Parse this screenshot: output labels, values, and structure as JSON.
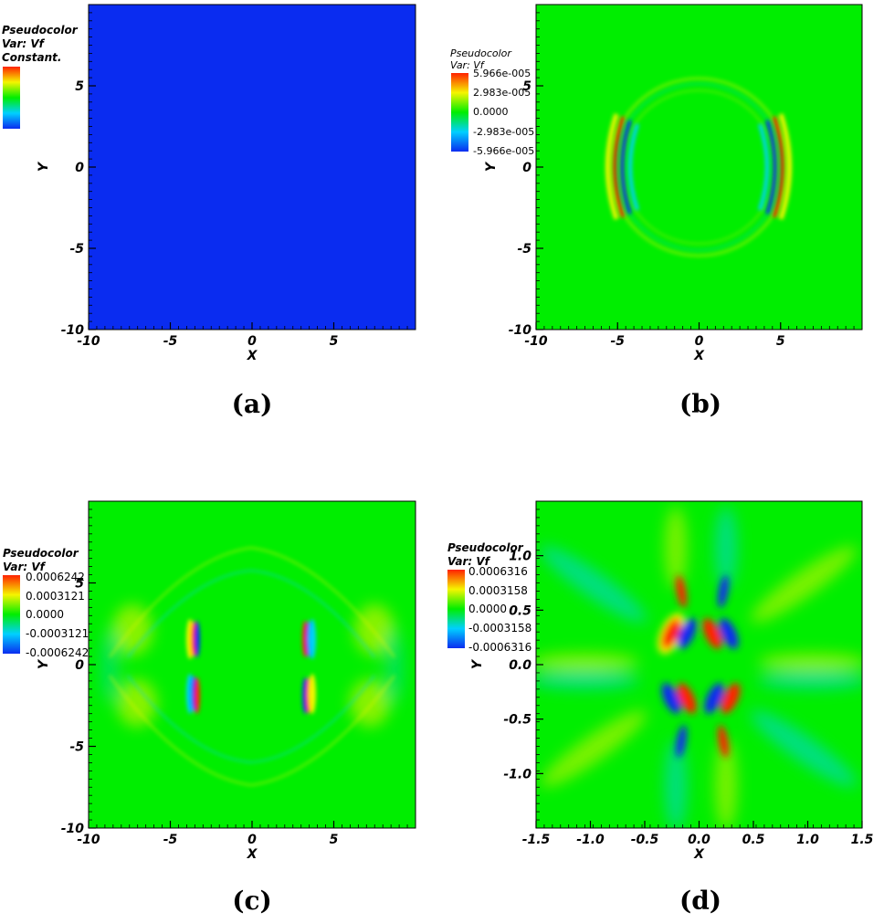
{
  "panels": [
    {
      "caption": "(a)",
      "legend": {
        "title": "Pseudocolor",
        "var": "Var: Vf",
        "labels": [
          "Constant."
        ]
      },
      "chart_data": {
        "type": "heatmap",
        "field": "constant",
        "xlabel": "X",
        "ylabel": "Y",
        "xlim": [
          -10,
          10
        ],
        "ylim": [
          -10,
          10
        ],
        "xticks": [
          {
            "v": -10,
            "label": "-10"
          },
          {
            "v": -5,
            "label": "-5"
          },
          {
            "v": 0,
            "label": "0"
          },
          {
            "v": 5,
            "label": "5"
          }
        ],
        "yticks": [
          {
            "v": -10,
            "label": "-10"
          },
          {
            "v": -5,
            "label": "-5"
          },
          {
            "v": 0,
            "label": "0"
          },
          {
            "v": 5,
            "label": "5"
          }
        ],
        "colormap": "hot-desaturated"
      }
    },
    {
      "caption": "(b)",
      "legend": {
        "title": "Pseudocolor",
        "var": "Var: Vf",
        "labels": [
          "5.966e-005",
          "2.983e-005",
          "0.0000",
          "-2.983e-005",
          "-5.966e-005"
        ]
      },
      "chart_data": {
        "type": "heatmap",
        "field": "ring",
        "xlabel": "X",
        "ylabel": "Y",
        "xlim": [
          -10,
          10
        ],
        "ylim": [
          -10,
          10
        ],
        "xticks": [
          {
            "v": -10,
            "label": "-10"
          },
          {
            "v": -5,
            "label": "-5"
          },
          {
            "v": 0,
            "label": "0"
          },
          {
            "v": 5,
            "label": "5"
          }
        ],
        "yticks": [
          {
            "v": -10,
            "label": "-10"
          },
          {
            "v": -5,
            "label": "-5"
          },
          {
            "v": 0,
            "label": "0"
          },
          {
            "v": 5,
            "label": "5"
          }
        ],
        "vmin": -5.966e-05,
        "vmax": 5.966e-05,
        "colormap": "hot-desaturated"
      }
    },
    {
      "caption": "(c)",
      "legend": {
        "title": "Pseudocolor",
        "var": "Var: Vf",
        "labels": [
          "0.0006242",
          "0.0003121",
          "0.0000",
          "-0.0003121",
          "-0.0006242"
        ]
      },
      "chart_data": {
        "type": "heatmap",
        "field": "bars",
        "xlabel": "X",
        "ylabel": "Y",
        "xlim": [
          -10,
          10
        ],
        "ylim": [
          -10,
          10
        ],
        "xticks": [
          {
            "v": -10,
            "label": "-10"
          },
          {
            "v": -5,
            "label": "-5"
          },
          {
            "v": 0,
            "label": "0"
          },
          {
            "v": 5,
            "label": "5"
          }
        ],
        "yticks": [
          {
            "v": -10,
            "label": "-10"
          },
          {
            "v": -5,
            "label": "-5"
          },
          {
            "v": 0,
            "label": "0"
          },
          {
            "v": 5,
            "label": "5"
          }
        ],
        "vmin": -0.0006242,
        "vmax": 0.0006242,
        "colormap": "hot-desaturated"
      }
    },
    {
      "caption": "(d)",
      "legend": {
        "title": "Pseudocolor",
        "var": "Var: Vf",
        "labels": [
          "0.0006316",
          "0.0003158",
          "0.0000",
          "-0.0003158",
          "-0.0006316"
        ]
      },
      "chart_data": {
        "type": "heatmap",
        "field": "zoom",
        "xlabel": "X",
        "ylabel": "Y",
        "xlim": [
          -1.5,
          1.5
        ],
        "ylim": [
          -1.5,
          1.5
        ],
        "xticks": [
          {
            "v": -1.5,
            "label": "-1.5"
          },
          {
            "v": -1.0,
            "label": "-1.0"
          },
          {
            "v": -0.5,
            "label": "-0.5"
          },
          {
            "v": 0.0,
            "label": "0.0"
          },
          {
            "v": 0.5,
            "label": "0.5"
          },
          {
            "v": 1.0,
            "label": "1.0"
          },
          {
            "v": 1.5,
            "label": "1.5"
          }
        ],
        "yticks": [
          {
            "v": -1.0,
            "label": "-1.0"
          },
          {
            "v": -0.5,
            "label": "-0.5"
          },
          {
            "v": 0.0,
            "label": "0.0"
          },
          {
            "v": 0.5,
            "label": "0.5"
          },
          {
            "v": 1.0,
            "label": "1.0"
          }
        ],
        "vmin": -0.0006316,
        "vmax": 0.0006316,
        "colormap": "hot-desaturated"
      }
    }
  ],
  "colors": {
    "blue": "#0a2cf0",
    "cyan": "#00d0ff",
    "green": "#00ee00",
    "yellow": "#f5f500",
    "red": "#ff2200",
    "axis": "#000000"
  }
}
